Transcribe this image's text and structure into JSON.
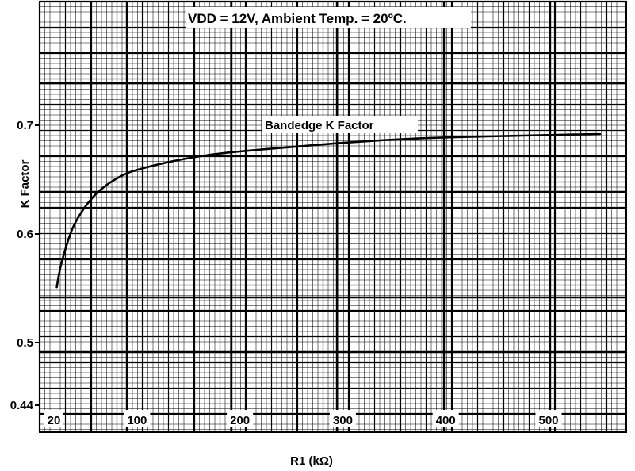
{
  "chart_data": {
    "type": "line",
    "title": "VDD = 12V, Ambient Temp. = 20ºC.",
    "xlabel": "R1 (kΩ)",
    "ylabel": "K Factor",
    "xlim": [
      20,
      560
    ],
    "ylim": [
      0.44,
      0.75
    ],
    "x_ticks": [
      20,
      100,
      200,
      300,
      400,
      500
    ],
    "x_tick_labels": [
      "20",
      "100",
      "200",
      "300",
      "400",
      "500"
    ],
    "y_ticks": [
      0.44,
      0.5,
      0.6,
      0.7
    ],
    "y_tick_labels": [
      "0.44",
      "0.5",
      "0.6",
      "0.7"
    ],
    "grid": true,
    "grid_style": "graph paper",
    "series": [
      {
        "name": "Bandedge K Factor",
        "x": [
          22,
          25,
          30,
          35,
          40,
          50,
          60,
          70,
          80,
          90,
          100,
          120,
          140,
          170,
          200,
          250,
          300,
          350,
          400,
          450,
          500,
          550
        ],
        "y": [
          0.551,
          0.568,
          0.585,
          0.6,
          0.611,
          0.626,
          0.637,
          0.645,
          0.651,
          0.656,
          0.659,
          0.664,
          0.668,
          0.673,
          0.676,
          0.68,
          0.684,
          0.687,
          0.689,
          0.69,
          0.691,
          0.692
        ]
      }
    ]
  }
}
